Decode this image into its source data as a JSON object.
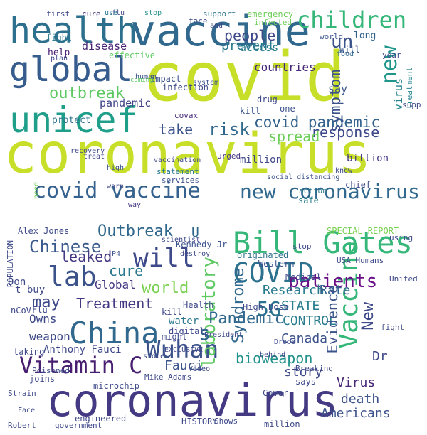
{
  "clouds": [
    {
      "name": "top-cloud",
      "words": [
        {
          "text": "covid",
          "color": "#c8df2a"
        },
        {
          "text": "coronavirus",
          "color": "#c8df2a"
        },
        {
          "text": "vaccine",
          "color": "#31688e"
        },
        {
          "text": "health",
          "color": "#2d708e"
        },
        {
          "text": "global",
          "color": "#365c8d"
        },
        {
          "text": "unicef",
          "color": "#1f9e89"
        },
        {
          "text": "children",
          "color": "#35b779"
        },
        {
          "text": "covid vaccine",
          "color": "#34618d"
        },
        {
          "text": "new coronavirus",
          "color": "#31688e"
        },
        {
          "text": "un",
          "color": "#3b528b"
        },
        {
          "text": "new",
          "color": "#1f968b"
        },
        {
          "text": "people",
          "color": "#3e4989"
        },
        {
          "text": "outbreak",
          "color": "#5ec962"
        },
        {
          "text": "take",
          "color": "#3b528b"
        },
        {
          "text": "risk",
          "color": "#31688e"
        },
        {
          "text": "covid pandemic",
          "color": "#33638d"
        },
        {
          "text": "response",
          "color": "#3e4989"
        },
        {
          "text": "symptom",
          "color": "#3b528b"
        },
        {
          "text": "spread",
          "color": "#6ece58"
        },
        {
          "text": "prevent",
          "color": "#2a788e"
        },
        {
          "text": "access",
          "color": "#287c8e"
        },
        {
          "text": "countries",
          "color": "#482878"
        },
        {
          "text": "disease",
          "color": "#482475"
        },
        {
          "text": "infection",
          "color": "#3e4a89"
        },
        {
          "text": "pandemic",
          "color": "#414487"
        },
        {
          "text": "covax",
          "color": "#472d7b"
        },
        {
          "text": "protect",
          "color": "#2c728e"
        },
        {
          "text": "help",
          "color": "#481f70"
        },
        {
          "text": "fight",
          "color": "#2a788e"
        },
        {
          "text": "first",
          "color": "#3e4989"
        },
        {
          "text": "impact",
          "color": "#3b528b"
        },
        {
          "text": "support",
          "color": "#2c728e"
        },
        {
          "text": "say",
          "color": "#38588c"
        },
        {
          "text": "million",
          "color": "#3f4889"
        },
        {
          "text": "billion",
          "color": "#443a83"
        },
        {
          "text": "kill",
          "color": "#39568c"
        },
        {
          "text": "virus",
          "color": "#25848e"
        },
        {
          "text": "treatment",
          "color": "#25848e"
        },
        {
          "text": "world",
          "color": "#3b528b"
        },
        {
          "text": "long",
          "color": "#33638d"
        },
        {
          "text": "Will",
          "color": "#39558c"
        },
        {
          "text": "cure",
          "color": "#46327e"
        },
        {
          "text": "flu",
          "color": "#414487"
        },
        {
          "text": "use",
          "color": "#2a788e"
        },
        {
          "text": "stop",
          "color": "#21918c"
        },
        {
          "text": "emergency",
          "color": "#6ece58"
        },
        {
          "text": "face",
          "color": "#3e4989"
        },
        {
          "text": "plan",
          "color": "#404688"
        },
        {
          "text": "effective",
          "color": "#5ec962"
        },
        {
          "text": "human",
          "color": "#3b528b"
        },
        {
          "text": "system",
          "color": "#3b528b"
        },
        {
          "text": "urged",
          "color": "#453781"
        },
        {
          "text": "drug",
          "color": "#3e4989"
        },
        {
          "text": "statement",
          "color": "#2a788e"
        },
        {
          "text": "services",
          "color": "#3b528b"
        },
        {
          "text": "vaccination",
          "color": "#3e4989"
        },
        {
          "text": "high",
          "color": "#3b528b"
        },
        {
          "text": "treat",
          "color": "#3e4989"
        },
        {
          "text": "warn",
          "color": "#3e4989"
        },
        {
          "text": "need",
          "color": "#6ece58"
        },
        {
          "text": "chief",
          "color": "#3e4989"
        },
        {
          "text": "safe",
          "color": "#287c8e"
        },
        {
          "text": "action",
          "color": "#2a788e"
        },
        {
          "text": "way",
          "color": "#443983"
        },
        {
          "text": "social distancing",
          "color": "#3b528b"
        },
        {
          "text": "know",
          "color": "#3e4989"
        },
        {
          "text": "food",
          "color": "#31688e"
        },
        {
          "text": "year",
          "color": "#3e4989"
        },
        {
          "text": "one",
          "color": "#3b528b"
        },
        {
          "text": "supplies",
          "color": "#3e4989"
        },
        {
          "text": "and",
          "color": "#3e4989"
        },
        {
          "text": "infected",
          "color": "#6ece58"
        },
        {
          "text": "recovery",
          "color": "#3e4989"
        },
        {
          "text": "coming",
          "color": "#5ec962"
        }
      ]
    },
    {
      "name": "bottom-cloud",
      "words": [
        {
          "text": "coronavirus",
          "color": "#443983"
        },
        {
          "text": "Bill Gates",
          "color": "#35b779"
        },
        {
          "text": "COVID",
          "color": "#2c728e"
        },
        {
          "text": "Vaccine",
          "color": "#35b779"
        },
        {
          "text": "China",
          "color": "#31688e"
        },
        {
          "text": "Wuhan",
          "color": "#3b528b"
        },
        {
          "text": "Vitamin C",
          "color": "#481f70"
        },
        {
          "text": "lab",
          "color": "#3b528b"
        },
        {
          "text": "will",
          "color": "#3e4989"
        },
        {
          "text": "5G",
          "color": "#2c728e"
        },
        {
          "text": "laboratory",
          "color": "#5ec962"
        },
        {
          "text": "Syndrome",
          "color": "#31688e"
        },
        {
          "text": "patients",
          "color": "#6a0f85"
        },
        {
          "text": "Chinese",
          "color": "#38588c"
        },
        {
          "text": "Outbreak",
          "color": "#31688e"
        },
        {
          "text": "leaked",
          "color": "#443983"
        },
        {
          "text": "cure",
          "color": "#2a788e"
        },
        {
          "text": "world",
          "color": "#7ad151"
        },
        {
          "text": "Global",
          "color": "#443983"
        },
        {
          "text": "Treatment",
          "color": "#443983"
        },
        {
          "text": "may",
          "color": "#3e4989"
        },
        {
          "text": "Pandemic",
          "color": "#31688e"
        },
        {
          "text": "bioweapon",
          "color": "#21918c"
        },
        {
          "text": "Research",
          "color": "#287c8e"
        },
        {
          "text": "Rate",
          "color": "#33638d"
        },
        {
          "text": "STATE",
          "color": "#287c8e"
        },
        {
          "text": "CONTROL",
          "color": "#287c8e"
        },
        {
          "text": "Evidence",
          "color": "#3b528b"
        },
        {
          "text": "New",
          "color": "#3e4989"
        },
        {
          "text": "Canada",
          "color": "#3b528b"
        },
        {
          "text": "story",
          "color": "#3e4989"
        },
        {
          "text": "Virus",
          "color": "#482878"
        },
        {
          "text": "death",
          "color": "#3b528b"
        },
        {
          "text": "Dr",
          "color": "#3e4989"
        },
        {
          "text": "Fauci",
          "color": "#3b528b"
        },
        {
          "text": "Americans",
          "color": "#3b528b"
        },
        {
          "text": "weapon",
          "color": "#3e4989"
        },
        {
          "text": "Owns",
          "color": "#3e4989"
        },
        {
          "text": "Anthony Fauci",
          "color": "#3e4989"
        },
        {
          "text": "s",
          "color": "#33638d"
        },
        {
          "text": "U",
          "color": "#31688e"
        },
        {
          "text": "Alex Jones",
          "color": "#3e4989"
        },
        {
          "text": "Kennedy Jr",
          "color": "#3b528b"
        },
        {
          "text": "P4",
          "color": "#3b528b"
        },
        {
          "text": "water",
          "color": "#2a788e"
        },
        {
          "text": "originated",
          "color": "#2c728e"
        },
        {
          "text": "Western",
          "color": "#3b528b"
        },
        {
          "text": "Health",
          "color": "#3e4989"
        },
        {
          "text": "Medical",
          "color": "#3e4989"
        },
        {
          "text": "High Dose",
          "color": "#3e4989"
        },
        {
          "text": "Don",
          "color": "#3e4989"
        },
        {
          "text": "t buy",
          "color": "#3e4989"
        },
        {
          "text": "nCoV",
          "color": "#3e4989"
        },
        {
          "text": "Flu",
          "color": "#3e4989"
        },
        {
          "text": "POPULATION",
          "color": "#3e4989"
        },
        {
          "text": "digital",
          "color": "#3e4989"
        },
        {
          "text": "kill",
          "color": "#3e4989"
        },
        {
          "text": "might",
          "color": "#3e4989"
        },
        {
          "text": "taking",
          "color": "#3e4989"
        },
        {
          "text": "Poisoned",
          "color": "#3e4989"
        },
        {
          "text": "microchip",
          "color": "#3e4989"
        },
        {
          "text": "joins",
          "color": "#3e4989"
        },
        {
          "text": "Strain",
          "color": "#3e4989"
        },
        {
          "text": "Robert",
          "color": "#3e4989"
        },
        {
          "text": "government",
          "color": "#3e4989"
        },
        {
          "text": "engineered",
          "color": "#3e4989"
        },
        {
          "text": "HISTORY",
          "color": "#3e4989"
        },
        {
          "text": "Shows",
          "color": "#3e4989"
        },
        {
          "text": "million",
          "color": "#3e4989"
        },
        {
          "text": "Mike Adams",
          "color": "#3e4989"
        },
        {
          "text": "Cover",
          "color": "#3e4989"
        },
        {
          "text": "says",
          "color": "#3e4989"
        },
        {
          "text": "Breaking",
          "color": "#3e4989"
        },
        {
          "text": "SPECIAL REPORT",
          "color": "#7ad151"
        },
        {
          "text": "using",
          "color": "#3e4989"
        },
        {
          "text": "USA Humans",
          "color": "#3e4989"
        },
        {
          "text": "United",
          "color": "#3e4989"
        },
        {
          "text": "fight",
          "color": "#3e4989"
        },
        {
          "text": "stop",
          "color": "#3e4989"
        },
        {
          "text": "scientist",
          "color": "#3e4989"
        },
        {
          "text": "destroy",
          "color": "#3e4989"
        },
        {
          "text": "EXCLUSIVE",
          "color": "#3e4989"
        },
        {
          "text": "President",
          "color": "#3e4989"
        },
        {
          "text": "behind",
          "color": "#3e4989"
        },
        {
          "text": "Drops",
          "color": "#3e4989"
        },
        {
          "text": "Video",
          "color": "#3e4989"
        },
        {
          "text": "stole",
          "color": "#3e4989"
        },
        {
          "text": "Face",
          "color": "#3e4989"
        }
      ]
    }
  ]
}
